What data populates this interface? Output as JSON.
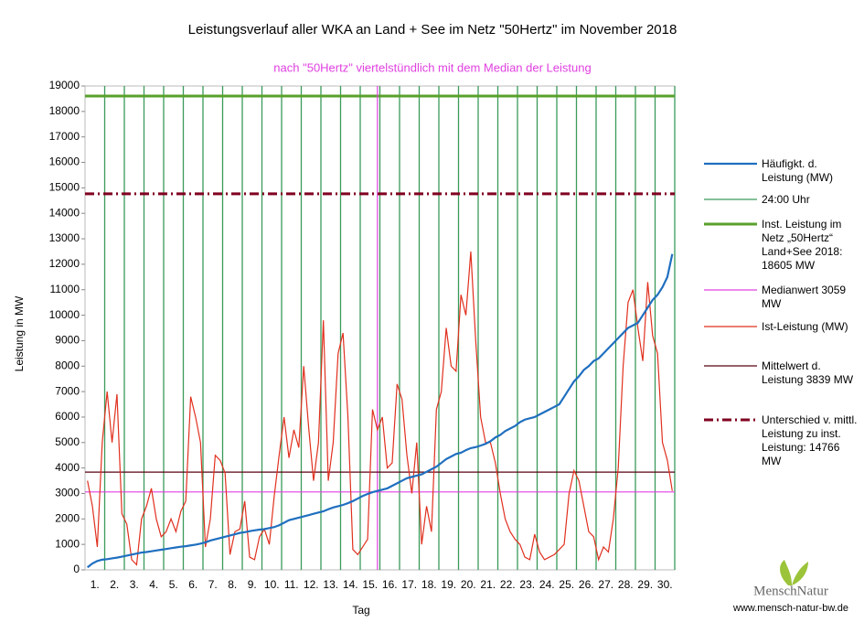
{
  "chart_data": {
    "type": "line",
    "title": "Leistungsverlauf aller WKA an Land + See im Netz \"50Hertz\" im November 2018",
    "subtitle": "nach \"50Hertz\" viertelstündlich mit dem Median der Leistung",
    "y_label": "Leistung in MW",
    "x_label": "Tag",
    "categories": [
      "1.",
      "2.",
      "3.",
      "4.",
      "5.",
      "6.",
      "7.",
      "8.",
      "9.",
      "10.",
      "11.",
      "12.",
      "13.",
      "14.",
      "15.",
      "16.",
      "17.",
      "18.",
      "19.",
      "20.",
      "21.",
      "22.",
      "23.",
      "24.",
      "25.",
      "26.",
      "27.",
      "28.",
      "29.",
      "30."
    ],
    "ylim": [
      0,
      19000
    ],
    "yticks": [
      0,
      1000,
      2000,
      3000,
      4000,
      5000,
      6000,
      7000,
      8000,
      9000,
      10000,
      11000,
      12000,
      13000,
      14000,
      15000,
      16000,
      17000,
      18000,
      19000
    ],
    "series": [
      {
        "name": "Häufigkt. d. Leistung (MW)",
        "color": "#1f6fbf",
        "values": [
          [
            100,
            250,
            350,
            400
          ],
          [
            420,
            450,
            480,
            520
          ],
          [
            560,
            600,
            640,
            680
          ],
          [
            700,
            730,
            760,
            790
          ],
          [
            820,
            850,
            880,
            910
          ],
          [
            930,
            960,
            990,
            1030
          ],
          [
            1080,
            1150,
            1200,
            1250
          ],
          [
            1300,
            1350,
            1400,
            1450
          ],
          [
            1480,
            1520,
            1550,
            1580
          ],
          [
            1600,
            1640,
            1680,
            1750
          ],
          [
            1850,
            1950,
            2000,
            2050
          ],
          [
            2100,
            2150,
            2200,
            2250
          ],
          [
            2300,
            2380,
            2450,
            2500
          ],
          [
            2550,
            2620,
            2700,
            2800
          ],
          [
            2900,
            2980,
            3050,
            3100
          ],
          [
            3150,
            3200,
            3300,
            3400
          ],
          [
            3500,
            3600,
            3650,
            3700
          ],
          [
            3750,
            3850,
            3950,
            4050
          ],
          [
            4200,
            4350,
            4450,
            4550
          ],
          [
            4600,
            4700,
            4780,
            4820
          ],
          [
            4880,
            4950,
            5050,
            5200
          ],
          [
            5300,
            5450,
            5550,
            5650
          ],
          [
            5800,
            5900,
            5950,
            6000
          ],
          [
            6100,
            6200,
            6300,
            6400
          ],
          [
            6500,
            6800,
            7100,
            7400
          ],
          [
            7600,
            7850,
            8000,
            8200
          ],
          [
            8300,
            8500,
            8700,
            8900
          ],
          [
            9100,
            9300,
            9500,
            9600
          ],
          [
            9700,
            10000,
            10300,
            10600
          ],
          [
            10800,
            11100,
            11500,
            12400
          ]
        ]
      },
      {
        "name": "24:00 Uhr",
        "color": "#3a9a5a"
      },
      {
        "name": "Inst. Leistung im Netz „50Hertz“ Land+See 2018: 18605 MW",
        "color": "#5aa02c",
        "value": 18605
      },
      {
        "name": "Medianwert 3059 MW",
        "color": "#e040e0",
        "value": 3059
      },
      {
        "name": "Ist-Leistung (MW)",
        "color": "#e0301e",
        "values": [
          [
            3500,
            2500,
            900,
            5000
          ],
          [
            7000,
            5000,
            6900,
            2200
          ],
          [
            1800,
            400,
            200,
            2000
          ],
          [
            2500,
            3200,
            2000,
            1300
          ],
          [
            1500,
            2000,
            1500,
            2300
          ],
          [
            2700,
            6800,
            6000,
            5000
          ],
          [
            900,
            2000,
            4500,
            4300
          ],
          [
            3800,
            600,
            1500,
            1600
          ],
          [
            2700,
            500,
            400,
            1300
          ],
          [
            1600,
            1000,
            2900,
            4500
          ],
          [
            6000,
            4400,
            5500,
            4800
          ],
          [
            8000,
            5600,
            3500,
            5000
          ],
          [
            9800,
            3500,
            5000,
            8500
          ],
          [
            9300,
            6000,
            800,
            600
          ],
          [
            900,
            1200,
            6300,
            5500
          ],
          [
            6000,
            4000,
            4200,
            7300
          ],
          [
            6700,
            4500,
            3000,
            5000
          ],
          [
            1000,
            2500,
            1500,
            6300
          ],
          [
            7000,
            9500,
            8000,
            7800
          ],
          [
            10800,
            10000,
            12500,
            9000
          ],
          [
            6000,
            5000,
            5000,
            4200
          ],
          [
            3000,
            2000,
            1500,
            1200
          ],
          [
            1000,
            500,
            400,
            1400
          ],
          [
            700,
            400,
            500,
            600
          ],
          [
            800,
            1000,
            3000,
            3900
          ],
          [
            3500,
            2500,
            1500,
            1300
          ],
          [
            400,
            900,
            700,
            2000
          ],
          [
            4000,
            8000,
            10500,
            11000
          ],
          [
            9500,
            8200,
            11300,
            9200
          ],
          [
            8500,
            5000,
            4300,
            3100
          ]
        ]
      },
      {
        "name": "Mittelwert d. Leistung 3839 MW",
        "color": "#5a0010",
        "value": 3839
      },
      {
        "name": "Unterschied v. mittl. Leistung zu inst. Leistung: 14766 MW",
        "color": "#800020",
        "value": 14766,
        "dashed": true
      }
    ],
    "logo": {
      "name": "MenschNatur",
      "url": "www.mensch-natur-bw.de"
    }
  }
}
